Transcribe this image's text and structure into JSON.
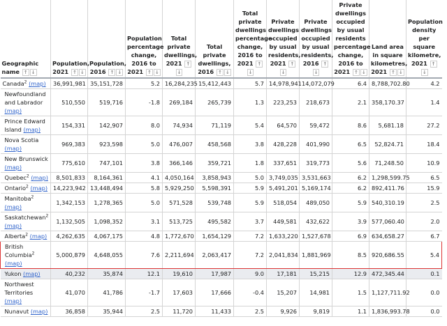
{
  "headers": [
    "Geographic name",
    "Population, 2021",
    "Population, 2016",
    "Population percentage change, 2016 to 2021",
    "Total private dwellings, 2021",
    "Total private dwellings, 2016",
    "Total private dwellings percentage change, 2016 to 2021",
    "Private dwellings occupied by usual residents, 2021",
    "Private dwellings occupied by usual residents, 2016",
    "Private dwellings occupied by usual residents percentage change, 2016 to 2021",
    "Land area in square kilometres, 2021",
    "Population density per square kilometre, 2021"
  ],
  "sort_icons": [
    "arrow-up-icon",
    "arrow-down-icon"
  ],
  "map_label": "(map)",
  "highlight_color": "#dd3333",
  "rows": [
    {
      "name": "Canada",
      "sup": "2",
      "values": [
        "36,991,981",
        "35,151,728",
        "5.2",
        "16,284,235",
        "15,412,443",
        "5.7",
        "14,978,941",
        "14,072,079",
        "6.4",
        "8,788,702.80",
        "4.2"
      ]
    },
    {
      "name": "Newfoundland and Labrador",
      "sup": "",
      "values": [
        "510,550",
        "519,716",
        "-1.8",
        "269,184",
        "265,739",
        "1.3",
        "223,253",
        "218,673",
        "2.1",
        "358,170.37",
        "1.4"
      ]
    },
    {
      "name": "Prince Edward Island",
      "sup": "",
      "values": [
        "154,331",
        "142,907",
        "8.0",
        "74,934",
        "71,119",
        "5.4",
        "64,570",
        "59,472",
        "8.6",
        "5,681.18",
        "27.2"
      ]
    },
    {
      "name": "Nova Scotia",
      "sup": "",
      "values": [
        "969,383",
        "923,598",
        "5.0",
        "476,007",
        "458,568",
        "3.8",
        "428,228",
        "401,990",
        "6.5",
        "52,824.71",
        "18.4"
      ]
    },
    {
      "name": "New Brunswick",
      "sup": "",
      "values": [
        "775,610",
        "747,101",
        "3.8",
        "366,146",
        "359,721",
        "1.8",
        "337,651",
        "319,773",
        "5.6",
        "71,248.50",
        "10.9"
      ]
    },
    {
      "name": "Quebec",
      "sup": "2",
      "values": [
        "8,501,833",
        "8,164,361",
        "4.1",
        "4,050,164",
        "3,858,943",
        "5.0",
        "3,749,035",
        "3,531,663",
        "6.2",
        "1,298,599.75",
        "6.5"
      ]
    },
    {
      "name": "Ontario",
      "sup": "2",
      "values": [
        "14,223,942",
        "13,448,494",
        "5.8",
        "5,929,250",
        "5,598,391",
        "5.9",
        "5,491,201",
        "5,169,174",
        "6.2",
        "892,411.76",
        "15.9"
      ]
    },
    {
      "name": "Manitoba",
      "sup": "2",
      "values": [
        "1,342,153",
        "1,278,365",
        "5.0",
        "571,528",
        "539,748",
        "5.9",
        "518,054",
        "489,050",
        "5.9",
        "540,310.19",
        "2.5"
      ]
    },
    {
      "name": "Saskatchewan",
      "sup": "2",
      "values": [
        "1,132,505",
        "1,098,352",
        "3.1",
        "513,725",
        "495,582",
        "3.7",
        "449,581",
        "432,622",
        "3.9",
        "577,060.40",
        "2.0"
      ]
    },
    {
      "name": "Alberta",
      "sup": "2",
      "values": [
        "4,262,635",
        "4,067,175",
        "4.8",
        "1,772,670",
        "1,654,129",
        "7.2",
        "1,633,220",
        "1,527,678",
        "6.9",
        "634,658.27",
        "6.7"
      ]
    },
    {
      "name": "British Columbia",
      "sup": "2",
      "selected": true,
      "values": [
        "5,000,879",
        "4,648,055",
        "7.6",
        "2,211,694",
        "2,063,417",
        "7.2",
        "2,041,834",
        "1,881,969",
        "8.5",
        "920,686.55",
        "5.4"
      ]
    },
    {
      "name": "Yukon",
      "sup": "",
      "hover": true,
      "values": [
        "40,232",
        "35,874",
        "12.1",
        "19,610",
        "17,987",
        "9.0",
        "17,181",
        "15,215",
        "12.9",
        "472,345.44",
        "0.1"
      ]
    },
    {
      "name": "Northwest Territories",
      "sup": "",
      "values": [
        "41,070",
        "41,786",
        "-1.7",
        "17,603",
        "17,666",
        "-0.4",
        "15,207",
        "14,981",
        "1.5",
        "1,127,711.92",
        "0.0"
      ]
    },
    {
      "name": "Nunavut",
      "sup": "",
      "values": [
        "36,858",
        "35,944",
        "2.5",
        "11,720",
        "11,433",
        "2.5",
        "9,926",
        "9,819",
        "1.1",
        "1,836,993.78",
        "0.0"
      ]
    }
  ]
}
